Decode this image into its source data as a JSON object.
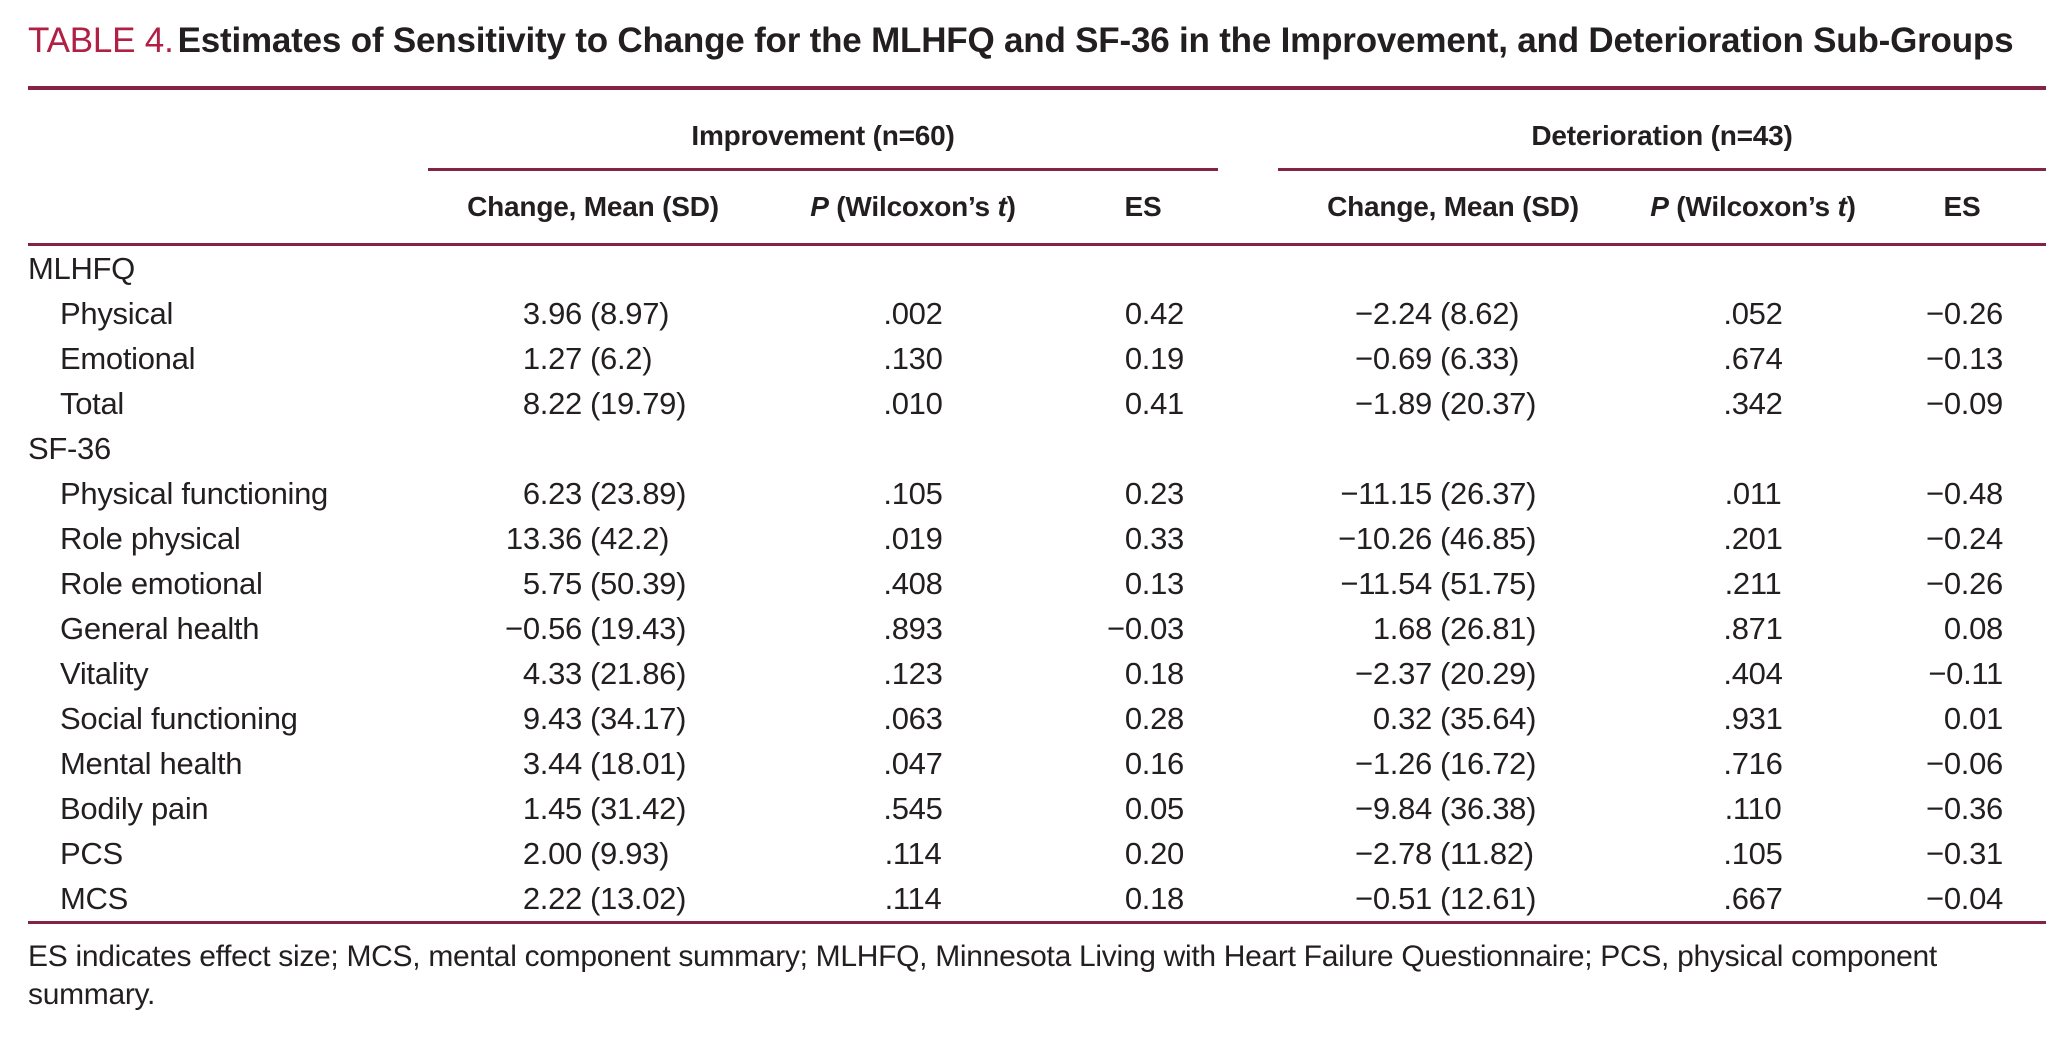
{
  "title": {
    "number": "TABLE 4.",
    "text": "Estimates of Sensitivity to Change for the MLHFQ and SF-36 in the Improvement, and Deterioration Sub-Groups"
  },
  "colors": {
    "title_accent": "#b01f44",
    "rule_maroon": "#832345",
    "text_ink": "#231f20"
  },
  "header": {
    "group_improvement": "Improvement (n=60)",
    "group_deterioration": "Deterioration (n=43)",
    "change_label": "Change, Mean (SD)",
    "p_label": {
      "p": "P",
      "mid": " (Wilcoxon’s ",
      "t": "t",
      "close": ")"
    },
    "es_label": "ES"
  },
  "rows": [
    {
      "type": "section",
      "label": "MLHFQ"
    },
    {
      "type": "data",
      "label": "Physical",
      "imp": {
        "mean": "3.96",
        "sd": "(8.97)",
        "p": ".002",
        "es": "0.42"
      },
      "det": {
        "mean": "−2.24",
        "sd": "(8.62)",
        "p": ".052",
        "es": "−0.26"
      }
    },
    {
      "type": "data",
      "label": "Emotional",
      "imp": {
        "mean": "1.27",
        "sd": "(6.2)",
        "p": ".130",
        "es": "0.19"
      },
      "det": {
        "mean": "−0.69",
        "sd": "(6.33)",
        "p": ".674",
        "es": "−0.13"
      }
    },
    {
      "type": "data",
      "label": "Total",
      "imp": {
        "mean": "8.22",
        "sd": "(19.79)",
        "p": ".010",
        "es": "0.41"
      },
      "det": {
        "mean": "−1.89",
        "sd": "(20.37)",
        "p": ".342",
        "es": "−0.09"
      }
    },
    {
      "type": "section",
      "label": "SF-36"
    },
    {
      "type": "data",
      "label": "Physical functioning",
      "imp": {
        "mean": "6.23",
        "sd": "(23.89)",
        "p": ".105",
        "es": "0.23"
      },
      "det": {
        "mean": "−11.15",
        "sd": "(26.37)",
        "p": ".011",
        "es": "−0.48"
      }
    },
    {
      "type": "data",
      "label": "Role physical",
      "imp": {
        "mean": "13.36",
        "sd": "(42.2)",
        "p": ".019",
        "es": "0.33"
      },
      "det": {
        "mean": "−10.26",
        "sd": "(46.85)",
        "p": ".201",
        "es": "−0.24"
      }
    },
    {
      "type": "data",
      "label": "Role emotional",
      "imp": {
        "mean": "5.75",
        "sd": "(50.39)",
        "p": ".408",
        "es": "0.13"
      },
      "det": {
        "mean": "−11.54",
        "sd": "(51.75)",
        "p": ".211",
        "es": "−0.26"
      }
    },
    {
      "type": "data",
      "label": "General health",
      "imp": {
        "mean": "−0.56",
        "sd": "(19.43)",
        "p": ".893",
        "es": "−0.03"
      },
      "det": {
        "mean": "1.68",
        "sd": "(26.81)",
        "p": ".871",
        "es": "0.08"
      }
    },
    {
      "type": "data",
      "label": "Vitality",
      "imp": {
        "mean": "4.33",
        "sd": "(21.86)",
        "p": ".123",
        "es": "0.18"
      },
      "det": {
        "mean": "−2.37",
        "sd": "(20.29)",
        "p": ".404",
        "es": "−0.11"
      }
    },
    {
      "type": "data",
      "label": "Social functioning",
      "imp": {
        "mean": "9.43",
        "sd": "(34.17)",
        "p": ".063",
        "es": "0.28"
      },
      "det": {
        "mean": "0.32",
        "sd": "(35.64)",
        "p": ".931",
        "es": "0.01"
      }
    },
    {
      "type": "data",
      "label": "Mental health",
      "imp": {
        "mean": "3.44",
        "sd": "(18.01)",
        "p": ".047",
        "es": "0.16"
      },
      "det": {
        "mean": "−1.26",
        "sd": "(16.72)",
        "p": ".716",
        "es": "−0.06"
      }
    },
    {
      "type": "data",
      "label": "Bodily pain",
      "imp": {
        "mean": "1.45",
        "sd": "(31.42)",
        "p": ".545",
        "es": "0.05"
      },
      "det": {
        "mean": "−9.84",
        "sd": "(36.38)",
        "p": ".110",
        "es": "−0.36"
      }
    },
    {
      "type": "data",
      "label": "PCS",
      "imp": {
        "mean": "2.00",
        "sd": "(9.93)",
        "p": ".114",
        "es": "0.20"
      },
      "det": {
        "mean": "−2.78",
        "sd": "(11.82)",
        "p": ".105",
        "es": "−0.31"
      }
    },
    {
      "type": "data",
      "label": "MCS",
      "imp": {
        "mean": "2.22",
        "sd": "(13.02)",
        "p": ".114",
        "es": "0.18"
      },
      "det": {
        "mean": "−0.51",
        "sd": "(12.61)",
        "p": ".667",
        "es": "−0.04"
      }
    }
  ],
  "footnote": "ES indicates effect size; MCS, mental component summary; MLHFQ, Minnesota Living with Heart Failure Questionnaire; PCS, physical component summary."
}
